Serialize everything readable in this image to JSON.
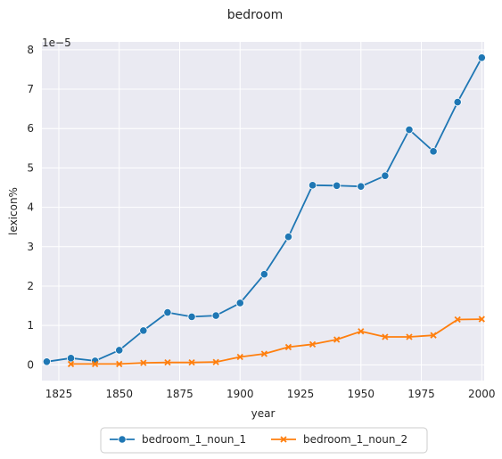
{
  "chart_data": {
    "type": "line",
    "title": "bedroom",
    "xlabel": "year",
    "ylabel": "lexicon%",
    "y_offset_label": "1e−5",
    "xlim": [
      1818,
      2001
    ],
    "ylim": [
      -0.4,
      8.2
    ],
    "xticks": [
      1825,
      1850,
      1875,
      1900,
      1925,
      1950,
      1975,
      2000
    ],
    "yticks": [
      0,
      1,
      2,
      3,
      4,
      5,
      6,
      7,
      8
    ],
    "grid": true,
    "legend_position": "bottom-center",
    "series": [
      {
        "name": "bedroom_1_noun_1",
        "color": "#1f77b4",
        "marker": "circle",
        "x": [
          1820,
          1830,
          1840,
          1850,
          1860,
          1870,
          1880,
          1890,
          1900,
          1910,
          1920,
          1930,
          1940,
          1950,
          1960,
          1970,
          1980,
          1990,
          2000
        ],
        "y": [
          0.08,
          0.17,
          0.1,
          0.37,
          0.87,
          1.33,
          1.22,
          1.25,
          1.57,
          2.3,
          3.25,
          4.56,
          4.55,
          4.53,
          4.8,
          5.97,
          5.42,
          6.67,
          7.8
        ]
      },
      {
        "name": "bedroom_1_noun_2",
        "color": "#ff7f0e",
        "marker": "x",
        "x": [
          1830,
          1840,
          1850,
          1860,
          1870,
          1880,
          1890,
          1900,
          1910,
          1920,
          1930,
          1940,
          1950,
          1960,
          1970,
          1980,
          1990,
          2000
        ],
        "y": [
          0.02,
          0.02,
          0.02,
          0.05,
          0.06,
          0.06,
          0.07,
          0.2,
          0.28,
          0.45,
          0.52,
          0.64,
          0.85,
          0.71,
          0.71,
          0.75,
          1.15,
          1.16
        ]
      }
    ]
  }
}
